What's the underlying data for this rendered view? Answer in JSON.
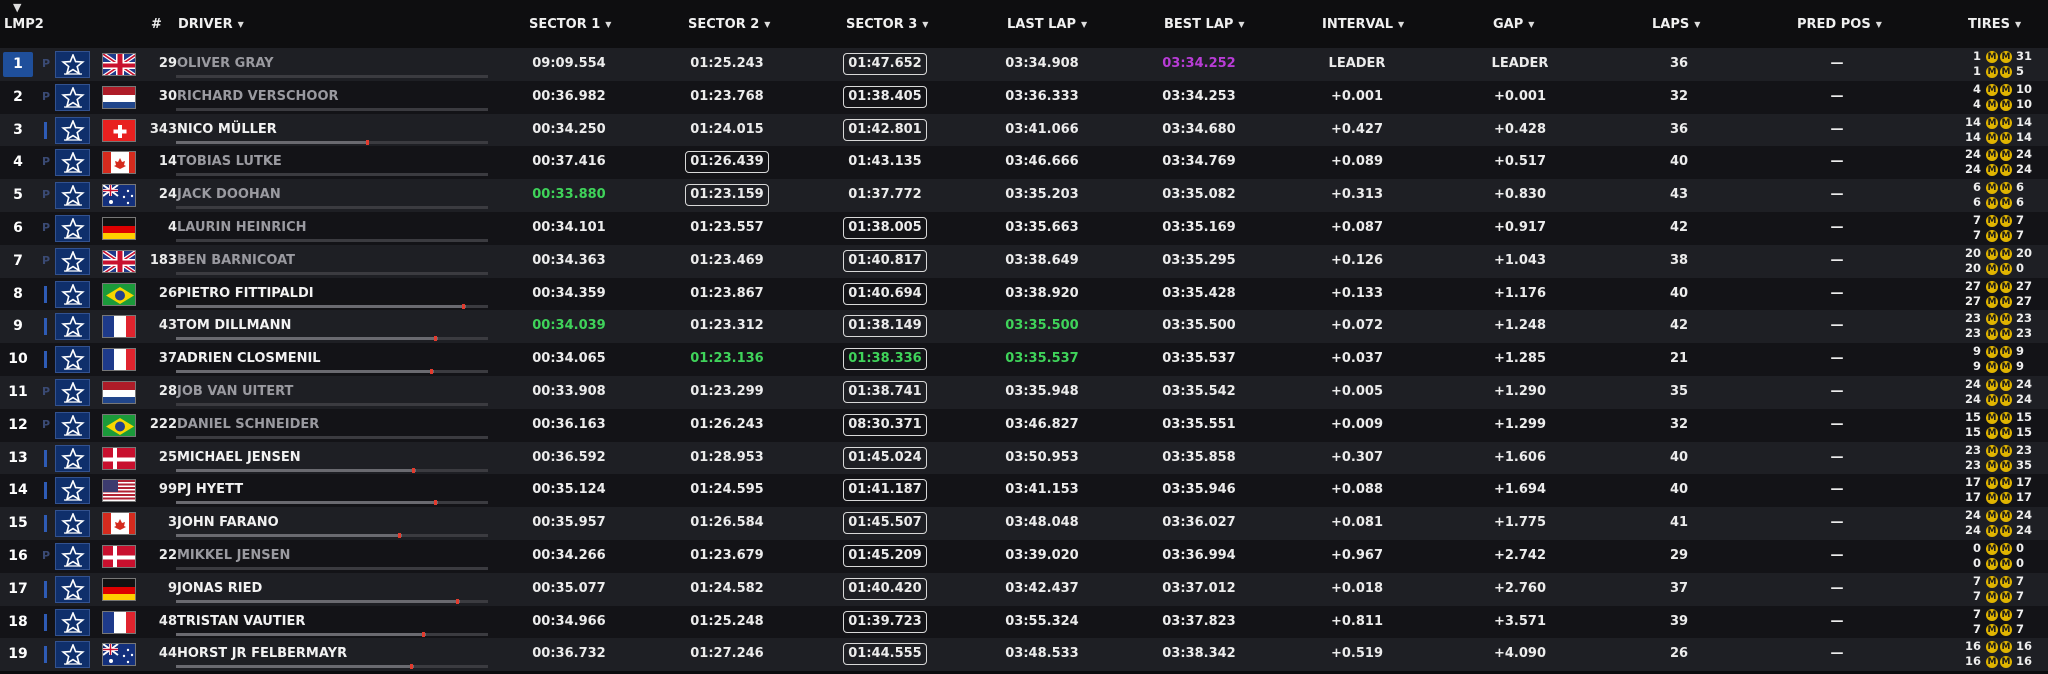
{
  "header": {
    "class_label": "LMP2",
    "num": "#",
    "driver": "DRIVER",
    "sector1": "SECTOR 1",
    "sector2": "SECTOR 2",
    "sector3": "SECTOR 3",
    "last_lap": "LAST LAP",
    "best_lap": "BEST LAP",
    "interval": "INTERVAL",
    "gap": "GAP",
    "laps": "LAPS",
    "pred_pos": "PRED POS",
    "tires": "TIRES"
  },
  "colors": {
    "leader_pos_bg": "#1f4f9b",
    "personal_best": "#3fd35a",
    "session_best": "#b83cd6",
    "compound_badge": "#e0b400",
    "progress_tip": "#e23b2e"
  },
  "rows": [
    {
      "pos": "1",
      "pit": "P",
      "flag": "gb",
      "num": "29",
      "driver": "OLIVER GRAY",
      "dim": true,
      "s1": "09:09.554",
      "s2": "01:25.243",
      "s3": "01:47.652",
      "last": "03:34.908",
      "best": "03:34.252",
      "interval": "LEADER",
      "gap": "LEADER",
      "laps": "36",
      "pred": "—",
      "tire_top_left": "1",
      "tire_top_right": "31",
      "tire_bottom_left": "1",
      "tire_bottom_right": "5",
      "tire_compound": "M"
    },
    {
      "pos": "2",
      "pit": "P",
      "flag": "nl",
      "num": "30",
      "driver": "RICHARD VERSCHOOR",
      "dim": true,
      "s1": "00:36.982",
      "s2": "01:23.768",
      "s3": "01:38.405",
      "last": "03:36.333",
      "best": "03:34.253",
      "interval": "+0.001",
      "gap": "+0.001",
      "laps": "32",
      "pred": "—",
      "tire_top_left": "4",
      "tire_top_right": "10",
      "tire_bottom_left": "4",
      "tire_bottom_right": "10",
      "tire_compound": "M"
    },
    {
      "pos": "3",
      "pit": "",
      "flag": "ch",
      "num": "343",
      "driver": "NICO MÜLLER",
      "dim": false,
      "s1": "00:34.250",
      "s2": "01:24.015",
      "s3": "01:42.801",
      "last": "03:41.066",
      "best": "03:34.680",
      "interval": "+0.427",
      "gap": "+0.428",
      "laps": "36",
      "pred": "—",
      "tire_top_left": "14",
      "tire_top_right": "14",
      "tire_bottom_left": "14",
      "tire_bottom_right": "14",
      "tire_compound": "M"
    },
    {
      "pos": "4",
      "pit": "P",
      "flag": "ca",
      "num": "14",
      "driver": "TOBIAS LUTKE",
      "dim": true,
      "s1": "00:37.416",
      "s2": "01:26.439",
      "s3": "01:43.135",
      "last": "03:46.666",
      "best": "03:34.769",
      "interval": "+0.089",
      "gap": "+0.517",
      "laps": "40",
      "pred": "—",
      "tire_top_left": "24",
      "tire_top_right": "24",
      "tire_bottom_left": "24",
      "tire_bottom_right": "24",
      "tire_compound": "M"
    },
    {
      "pos": "5",
      "pit": "P",
      "flag": "au",
      "num": "24",
      "driver": "JACK DOOHAN",
      "dim": true,
      "s1": "00:33.880",
      "s2": "01:23.159",
      "s3": "01:37.772",
      "last": "03:35.203",
      "best": "03:35.082",
      "interval": "+0.313",
      "gap": "+0.830",
      "laps": "43",
      "pred": "—",
      "tire_top_left": "6",
      "tire_top_right": "6",
      "tire_bottom_left": "6",
      "tire_bottom_right": "6",
      "tire_compound": "M"
    },
    {
      "pos": "6",
      "pit": "P",
      "flag": "de",
      "num": "4",
      "driver": "LAURIN HEINRICH",
      "dim": true,
      "s1": "00:34.101",
      "s2": "01:23.557",
      "s3": "01:38.005",
      "last": "03:35.663",
      "best": "03:35.169",
      "interval": "+0.087",
      "gap": "+0.917",
      "laps": "42",
      "pred": "—",
      "tire_top_left": "7",
      "tire_top_right": "7",
      "tire_bottom_left": "7",
      "tire_bottom_right": "7",
      "tire_compound": "M"
    },
    {
      "pos": "7",
      "pit": "P",
      "flag": "gb",
      "num": "183",
      "driver": "BEN BARNICOAT",
      "dim": true,
      "s1": "00:34.363",
      "s2": "01:23.469",
      "s3": "01:40.817",
      "last": "03:38.649",
      "best": "03:35.295",
      "interval": "+0.126",
      "gap": "+1.043",
      "laps": "38",
      "pred": "—",
      "tire_top_left": "20",
      "tire_top_right": "20",
      "tire_bottom_left": "20",
      "tire_bottom_right": "0",
      "tire_compound": "M"
    },
    {
      "pos": "8",
      "pit": "",
      "flag": "br",
      "num": "26",
      "driver": "PIETRO FITTIPALDI",
      "dim": false,
      "s1": "00:34.359",
      "s2": "01:23.867",
      "s3": "01:40.694",
      "last": "03:38.920",
      "best": "03:35.428",
      "interval": "+0.133",
      "gap": "+1.176",
      "laps": "40",
      "pred": "—",
      "tire_top_left": "27",
      "tire_top_right": "27",
      "tire_bottom_left": "27",
      "tire_bottom_right": "27",
      "tire_compound": "M"
    },
    {
      "pos": "9",
      "pit": "",
      "flag": "fr",
      "num": "43",
      "driver": "TOM DILLMANN",
      "dim": false,
      "s1": "00:34.039",
      "s2": "01:23.312",
      "s3": "01:38.149",
      "last": "03:35.500",
      "best": "03:35.500",
      "interval": "+0.072",
      "gap": "+1.248",
      "laps": "42",
      "pred": "—",
      "tire_top_left": "23",
      "tire_top_right": "23",
      "tire_bottom_left": "23",
      "tire_bottom_right": "23",
      "tire_compound": "M"
    },
    {
      "pos": "10",
      "pit": "",
      "flag": "fr",
      "num": "37",
      "driver": "ADRIEN CLOSMENIL",
      "dim": false,
      "s1": "00:34.065",
      "s2": "01:23.136",
      "s3": "01:38.336",
      "last": "03:35.537",
      "best": "03:35.537",
      "interval": "+0.037",
      "gap": "+1.285",
      "laps": "21",
      "pred": "—",
      "tire_top_left": "9",
      "tire_top_right": "9",
      "tire_bottom_left": "9",
      "tire_bottom_right": "9",
      "tire_compound": "M"
    },
    {
      "pos": "11",
      "pit": "P",
      "flag": "nl",
      "num": "28",
      "driver": "JOB VAN UITERT",
      "dim": true,
      "s1": "00:33.908",
      "s2": "01:23.299",
      "s3": "01:38.741",
      "last": "03:35.948",
      "best": "03:35.542",
      "interval": "+0.005",
      "gap": "+1.290",
      "laps": "35",
      "pred": "—",
      "tire_top_left": "24",
      "tire_top_right": "24",
      "tire_bottom_left": "24",
      "tire_bottom_right": "24",
      "tire_compound": "M"
    },
    {
      "pos": "12",
      "pit": "P",
      "flag": "br",
      "num": "222",
      "driver": "DANIEL SCHNEIDER",
      "dim": true,
      "s1": "00:36.163",
      "s2": "01:26.243",
      "s3": "08:30.371",
      "last": "03:46.827",
      "best": "03:35.551",
      "interval": "+0.009",
      "gap": "+1.299",
      "laps": "32",
      "pred": "—",
      "tire_top_left": "15",
      "tire_top_right": "15",
      "tire_bottom_left": "15",
      "tire_bottom_right": "15",
      "tire_compound": "M"
    },
    {
      "pos": "13",
      "pit": "",
      "flag": "dk",
      "num": "25",
      "driver": "MICHAEL JENSEN",
      "dim": false,
      "s1": "00:36.592",
      "s2": "01:28.953",
      "s3": "01:45.024",
      "last": "03:50.953",
      "best": "03:35.858",
      "interval": "+0.307",
      "gap": "+1.606",
      "laps": "40",
      "pred": "—",
      "tire_top_left": "23",
      "tire_top_right": "23",
      "tire_bottom_left": "23",
      "tire_bottom_right": "35",
      "tire_compound": "M"
    },
    {
      "pos": "14",
      "pit": "",
      "flag": "us",
      "num": "99",
      "driver": "PJ HYETT",
      "dim": false,
      "s1": "00:35.124",
      "s2": "01:24.595",
      "s3": "01:41.187",
      "last": "03:41.153",
      "best": "03:35.946",
      "interval": "+0.088",
      "gap": "+1.694",
      "laps": "40",
      "pred": "—",
      "tire_top_left": "17",
      "tire_top_right": "17",
      "tire_bottom_left": "17",
      "tire_bottom_right": "17",
      "tire_compound": "M"
    },
    {
      "pos": "15",
      "pit": "",
      "flag": "ca",
      "num": "3",
      "driver": "JOHN FARANO",
      "dim": false,
      "s1": "00:35.957",
      "s2": "01:26.584",
      "s3": "01:45.507",
      "last": "03:48.048",
      "best": "03:36.027",
      "interval": "+0.081",
      "gap": "+1.775",
      "laps": "41",
      "pred": "—",
      "tire_top_left": "24",
      "tire_top_right": "24",
      "tire_bottom_left": "24",
      "tire_bottom_right": "24",
      "tire_compound": "M"
    },
    {
      "pos": "16",
      "pit": "P",
      "flag": "dk",
      "num": "22",
      "driver": "MIKKEL JENSEN",
      "dim": true,
      "s1": "00:34.266",
      "s2": "01:23.679",
      "s3": "01:45.209",
      "last": "03:39.020",
      "best": "03:36.994",
      "interval": "+0.967",
      "gap": "+2.742",
      "laps": "29",
      "pred": "—",
      "tire_top_left": "0",
      "tire_top_right": "0",
      "tire_bottom_left": "0",
      "tire_bottom_right": "0",
      "tire_compound": "M"
    },
    {
      "pos": "17",
      "pit": "",
      "flag": "de",
      "num": "9",
      "driver": "JONAS RIED",
      "dim": false,
      "s1": "00:35.077",
      "s2": "01:24.582",
      "s3": "01:40.420",
      "last": "03:42.437",
      "best": "03:37.012",
      "interval": "+0.018",
      "gap": "+2.760",
      "laps": "37",
      "pred": "—",
      "tire_top_left": "7",
      "tire_top_right": "7",
      "tire_bottom_left": "7",
      "tire_bottom_right": "7",
      "tire_compound": "M"
    },
    {
      "pos": "18",
      "pit": "",
      "flag": "fr",
      "num": "48",
      "driver": "TRISTAN VAUTIER",
      "dim": false,
      "s1": "00:34.966",
      "s2": "01:25.248",
      "s3": "01:39.723",
      "last": "03:55.324",
      "best": "03:37.823",
      "interval": "+0.811",
      "gap": "+3.571",
      "laps": "39",
      "pred": "—",
      "tire_top_left": "7",
      "tire_top_right": "7",
      "tire_bottom_left": "7",
      "tire_bottom_right": "7",
      "tire_compound": "M"
    },
    {
      "pos": "19",
      "pit": "",
      "flag": "au",
      "num": "44",
      "driver": "HORST JR FELBERMAYR",
      "dim": false,
      "s1": "00:36.732",
      "s2": "01:27.246",
      "s3": "01:44.555",
      "last": "03:48.533",
      "best": "03:38.342",
      "interval": "+0.519",
      "gap": "+4.090",
      "laps": "26",
      "pred": "—",
      "tire_top_left": "16",
      "tire_top_right": "16",
      "tire_bottom_left": "16",
      "tire_bottom_right": "16",
      "tire_compound": "M"
    }
  ]
}
